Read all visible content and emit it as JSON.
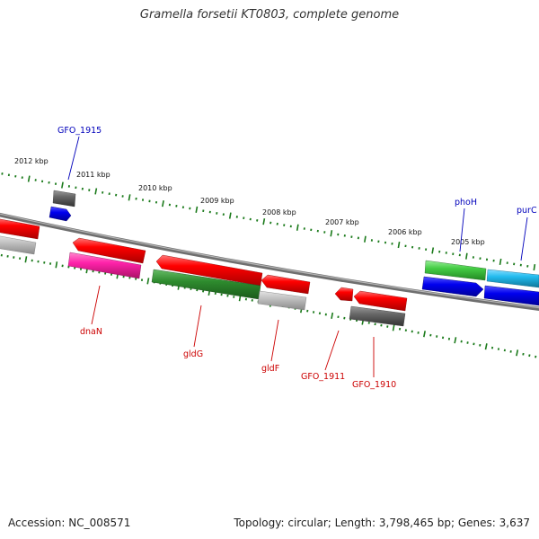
{
  "title": "Gramella forsetii KT0803, complete genome",
  "footer": {
    "accession": "Accession: NC_008571",
    "summary": "Topology: circular; Length: 3,798,465 bp; Genes: 3,637"
  },
  "scale_labels": [
    "2012 kbp",
    "2011 kbp",
    "2010 kbp",
    "2009 kbp",
    "2008 kbp",
    "2007 kbp",
    "2006 kbp",
    "2005 kbp"
  ],
  "gene_labels": {
    "GFO_1915": "GFO_1915",
    "phoH": "phoH",
    "purC": "purC",
    "dnaN": "dnaN",
    "gldG": "gldG",
    "gldF": "gldF",
    "GFO_1911": "GFO_1911",
    "GFO_1910": "GFO_1910"
  },
  "colors": {
    "backbone": "#888888",
    "tick_green": "#1a7a1a",
    "red": "#ff0000",
    "magenta": "#ff33aa",
    "dark_green": "#2e8b2e",
    "light_gray": "#c0c0c0",
    "dark_gray": "#666666",
    "blue": "#0000ee",
    "light_green": "#44cc44",
    "cyan": "#22bbee",
    "label_blue": "#0000bb",
    "label_red": "#cc0000"
  }
}
